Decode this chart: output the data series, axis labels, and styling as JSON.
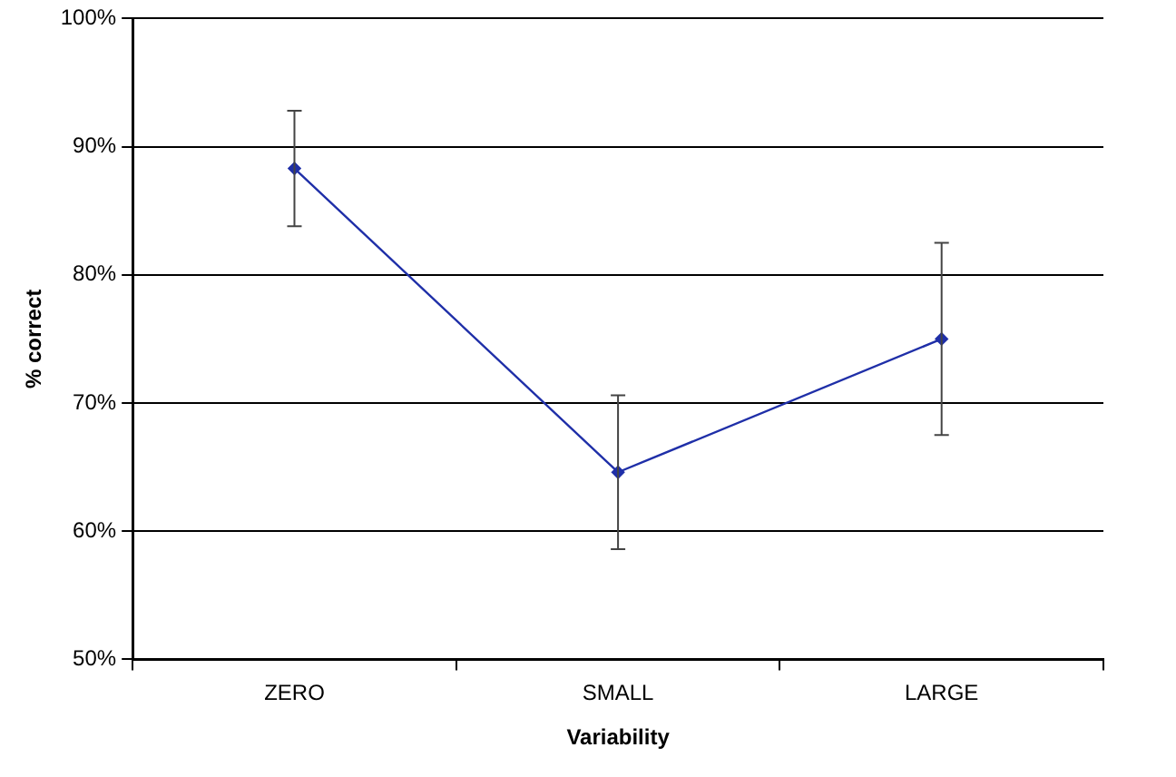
{
  "chart_data": {
    "type": "line",
    "xlabel": "Variability",
    "ylabel": "% correct",
    "categories": [
      "ZERO",
      "SMALL",
      "LARGE"
    ],
    "series": [
      {
        "color": "#1f2fa8",
        "values": [
          88.3,
          64.6,
          75.0
        ],
        "errors": [
          4.5,
          6,
          7.5
        ]
      }
    ],
    "ylim": [
      50,
      100
    ],
    "yticks": [
      {
        "value": 50,
        "label": "50%"
      },
      {
        "value": 60,
        "label": "60%"
      },
      {
        "value": 70,
        "label": "70%"
      },
      {
        "value": 80,
        "label": "80%"
      },
      {
        "value": 90,
        "label": "90%"
      },
      {
        "value": 100,
        "label": "100%"
      }
    ],
    "grid": "y",
    "legend": false,
    "marker": "diamond",
    "line_style": "solid"
  }
}
